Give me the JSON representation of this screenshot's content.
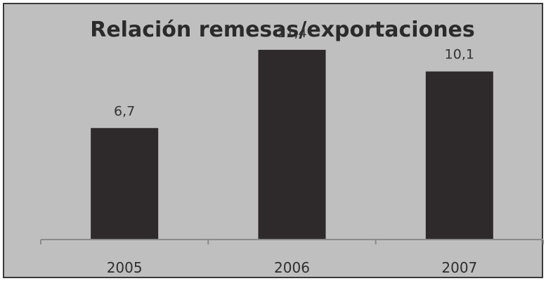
{
  "chart_data": {
    "type": "bar",
    "title": "Relación remesas/exportaciones",
    "categories": [
      "2005",
      "2006",
      "2007"
    ],
    "values": [
      6.7,
      11.4,
      10.1
    ],
    "data_labels": [
      "6,7",
      "11,4",
      "10,1"
    ],
    "xlabel": "",
    "ylabel": "",
    "ylim": [
      0,
      13
    ],
    "grid": false,
    "legend": "none",
    "bar_color": "#2e2a2c"
  }
}
